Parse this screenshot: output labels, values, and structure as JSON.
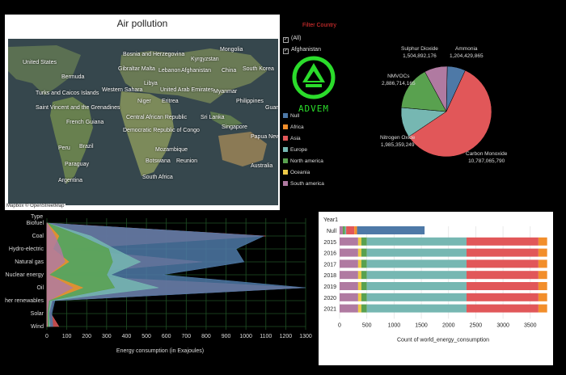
{
  "map": {
    "title": "Air pollution",
    "attribution": "Mapbox © OpenStreetMap",
    "labels": [
      "Bosnia and Herzegovina",
      "Mongolia",
      "Kyrgyzstan",
      "United States",
      "Gibraltar Malta",
      "Lebanon",
      "Afghanistan",
      "China",
      "South Korea",
      "Bermuda",
      "Libya",
      "Turks and Caicos Islands",
      "Western Sahara",
      "United Arab Emirates",
      "Myanmar",
      "Niger",
      "Eritrea",
      "Philippines",
      "Saint Vincent and the Grenadines",
      "Guam",
      "French Guiana",
      "Central African Republic",
      "Sri Lanka",
      "Singapore",
      "Democratic Republic of Congo",
      "Papua New Guinea",
      "Peru",
      "Brazil",
      "Mozambique",
      "Paraguay",
      "Botswana",
      "Reunion",
      "Australia",
      "Argentina",
      "South Africa"
    ]
  },
  "filter": {
    "title": "Filter Country",
    "options": [
      {
        "label": "(All)",
        "checked": true
      },
      {
        "label": "Afghanistan",
        "checked": true
      }
    ],
    "logo_text": "ADVEM",
    "legend": [
      {
        "label": "Null",
        "color": "#4e79a7"
      },
      {
        "label": "Africa",
        "color": "#f28e2b"
      },
      {
        "label": "Asia",
        "color": "#e15759"
      },
      {
        "label": "Europe",
        "color": "#76b7b2"
      },
      {
        "label": "North america",
        "color": "#59a14f"
      },
      {
        "label": "Oceania",
        "color": "#edc948"
      },
      {
        "label": "South america",
        "color": "#b07aa1"
      }
    ]
  },
  "chart_data": [
    {
      "type": "pie",
      "slices": [
        {
          "name": "Carbon Monoxide",
          "value": 10787065790,
          "label": "10,787,065,790",
          "color": "#e15759"
        },
        {
          "name": "Nitrogen Oxide",
          "value": 1985359249,
          "label": "1,985,359,249",
          "color": "#76b7b2"
        },
        {
          "name": "NMVOCs",
          "value": 2886714165,
          "label": "2,886,714,165",
          "color": "#59a14f"
        },
        {
          "name": "Sulphur Dioxide",
          "value": 1504892176,
          "label": "1,504,892,176",
          "color": "#b07aa1"
        },
        {
          "name": "Ammonia",
          "value": 1204429865,
          "label": "1,204,429,865",
          "color": "#4e79a7"
        }
      ]
    },
    {
      "type": "area",
      "title": "Type",
      "orientation": "horizontal",
      "categories": [
        "Biofuel",
        "Coal",
        "Hydro-electric",
        "Natural gas",
        "Nuclear energy",
        "Oil",
        "Other renewables",
        "Solar",
        "Wind"
      ],
      "xlabel": "Energy consumption (in Exajoules)",
      "xlim": [
        0,
        1300
      ],
      "xticks": [
        0,
        100,
        200,
        300,
        400,
        500,
        600,
        700,
        800,
        900,
        1000,
        1100,
        1200,
        1300
      ],
      "series": [
        {
          "name": "Asia",
          "color": "#e15759",
          "values": [
            5,
            1100,
            100,
            780,
            40,
            1290,
            30,
            20,
            60
          ]
        },
        {
          "name": "Null",
          "color": "#4e79a7",
          "values": [
            4,
            1090,
            950,
            990,
            580,
            1300,
            40,
            25,
            30
          ]
        },
        {
          "name": "Europe",
          "color": "#76b7b2",
          "values": [
            3,
            220,
            340,
            470,
            320,
            560,
            25,
            10,
            15
          ]
        },
        {
          "name": "North america",
          "color": "#59a14f",
          "values": [
            3,
            170,
            310,
            330,
            300,
            340,
            15,
            8,
            10
          ]
        },
        {
          "name": "Africa",
          "color": "#f28e2b",
          "values": [
            1,
            60,
            30,
            110,
            10,
            180,
            5,
            2,
            3
          ]
        },
        {
          "name": "South america",
          "color": "#b07aa1",
          "values": [
            1,
            40,
            70,
            90,
            10,
            130,
            10,
            2,
            2
          ]
        }
      ]
    },
    {
      "type": "bar",
      "orientation": "horizontal",
      "stacked": true,
      "title": "Year1",
      "categories": [
        "Null",
        "2015",
        "2016",
        "2017",
        "2018",
        "2019",
        "2020",
        "2021"
      ],
      "xlabel": "Count of world_energy_consumption",
      "xlim": [
        0,
        3800
      ],
      "xticks": [
        0,
        500,
        1000,
        1500,
        2000,
        2500,
        3000,
        3500
      ],
      "series": [
        {
          "name": "South america",
          "color": "#b07aa1",
          "values": [
            60,
            340,
            340,
            340,
            340,
            340,
            340,
            340
          ]
        },
        {
          "name": "Oceania",
          "color": "#edc948",
          "values": [
            0,
            60,
            60,
            60,
            60,
            60,
            60,
            60
          ]
        },
        {
          "name": "North america",
          "color": "#59a14f",
          "values": [
            40,
            100,
            100,
            100,
            100,
            100,
            100,
            100
          ]
        },
        {
          "name": "Europe",
          "color": "#76b7b2",
          "values": [
            20,
            1830,
            1830,
            1830,
            1830,
            1830,
            1830,
            1830
          ]
        },
        {
          "name": "Asia",
          "color": "#e15759",
          "values": [
            150,
            1320,
            1320,
            1320,
            1320,
            1320,
            1320,
            1320
          ]
        },
        {
          "name": "Africa",
          "color": "#f28e2b",
          "values": [
            50,
            160,
            160,
            160,
            160,
            160,
            160,
            160
          ]
        },
        {
          "name": "Null",
          "color": "#4e79a7",
          "values": [
            1240,
            0,
            0,
            0,
            0,
            0,
            0,
            0
          ]
        }
      ]
    }
  ]
}
